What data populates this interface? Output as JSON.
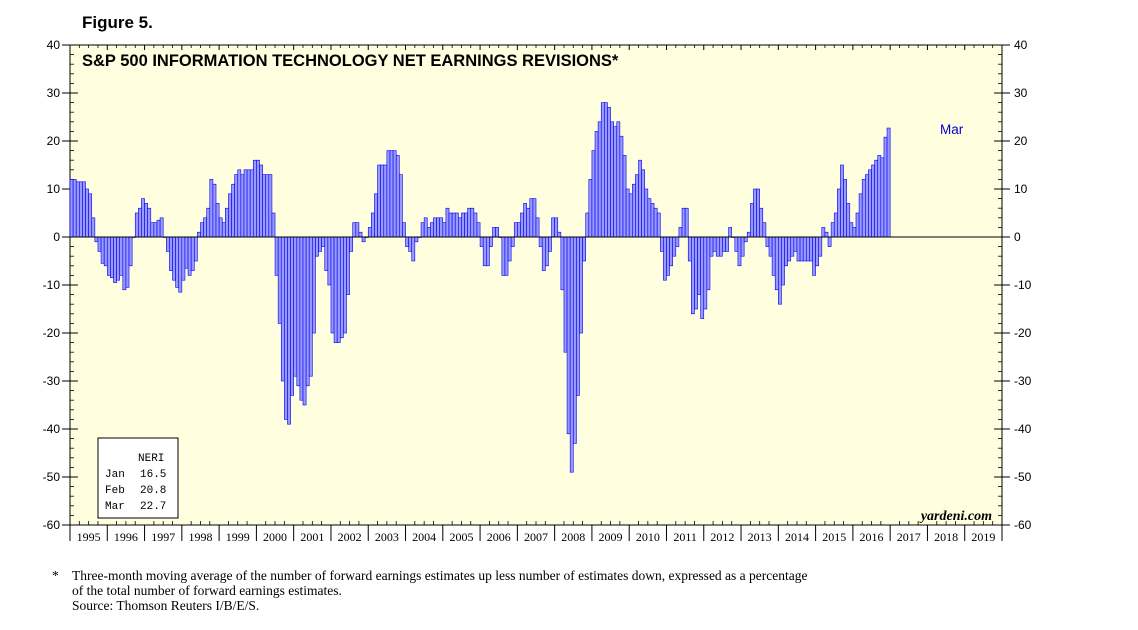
{
  "figure_label": "Figure 5.",
  "footnote": {
    "marker": "*",
    "line1": "Three-month moving average of the number of forward earnings estimates up less number of estimates down, expressed as a percentage",
    "line2": "of the total number of forward earnings estimates.",
    "source": "Source: Thomson Reuters I/B/E/S."
  },
  "colors": {
    "bars": "#0000ee",
    "bar_fill": "#9999ff",
    "plot_bg": "#ffffe0",
    "label": "#0000cc"
  },
  "chart_data": {
    "type": "bar",
    "title": "S&P 500 INFORMATION TECHNOLOGY NET EARNINGS REVISIONS*",
    "watermark": "yardeni.com",
    "ylim": [
      -60,
      40
    ],
    "xlim": [
      1995,
      2020
    ],
    "y_ticks": [
      40,
      30,
      20,
      10,
      0,
      -10,
      -20,
      -30,
      -40,
      -50,
      -60
    ],
    "x_tick_labels": [
      "1995",
      "1996",
      "1997",
      "1998",
      "1999",
      "2000",
      "2001",
      "2002",
      "2003",
      "2004",
      "2005",
      "2006",
      "2007",
      "2008",
      "2009",
      "2010",
      "2011",
      "2012",
      "2013",
      "2014",
      "2015",
      "2016",
      "2017",
      "2018",
      "2019"
    ],
    "grid": false,
    "last_point_label": "Mar",
    "legend": {
      "header": "NERI",
      "rows": [
        {
          "month": "Jan",
          "value": "16.5"
        },
        {
          "month": "Feb",
          "value": "20.8"
        },
        {
          "month": "Mar",
          "value": "22.7"
        }
      ]
    },
    "series": [
      {
        "start": "1995-01",
        "frequency": "monthly",
        "values": [
          12,
          12,
          11.5,
          11.5,
          11.5,
          10,
          9,
          4,
          -1,
          -3,
          -5.5,
          -6,
          -8,
          -8.5,
          -9.5,
          -9,
          -8,
          -11,
          -10.5,
          -6,
          0,
          5,
          6,
          8,
          7,
          6,
          3,
          3,
          3.5,
          4,
          0,
          -3,
          -7,
          -9,
          -10.5,
          -11.5,
          -9,
          -6.5,
          -8,
          -7,
          -5,
          1,
          3,
          4,
          6,
          12,
          11,
          7,
          4,
          3,
          6,
          9,
          11,
          13,
          14,
          13,
          14,
          14,
          14,
          16,
          16,
          15,
          13,
          13,
          13,
          5,
          -8,
          -18,
          -30,
          -38,
          -39,
          -33,
          -29,
          -31,
          -34,
          -35,
          -31,
          -29,
          -20,
          -4,
          -3,
          -2,
          -7,
          -10,
          -20,
          -22,
          -22,
          -21,
          -20,
          -12,
          -3,
          3,
          3,
          1,
          -1,
          0,
          2,
          5,
          9,
          15,
          15,
          15,
          18,
          18,
          18,
          17,
          13,
          3,
          -2,
          -3,
          -5,
          -1,
          0,
          3,
          4,
          2,
          3,
          4,
          4,
          4,
          3,
          6,
          5,
          5,
          5,
          4,
          5,
          5,
          6,
          6,
          5,
          3,
          -2,
          -6,
          -6,
          -2,
          2,
          2,
          0,
          -8,
          -8,
          -5,
          -2,
          3,
          3,
          5,
          7,
          6,
          8,
          8,
          4,
          -2,
          -7,
          -6,
          -3,
          4,
          4,
          1,
          -11,
          -24,
          -41,
          -49,
          -43,
          -33,
          -20,
          -5,
          5,
          12,
          18,
          22,
          24,
          28,
          28,
          27,
          24,
          23,
          24,
          21,
          17,
          10,
          9,
          11,
          13,
          16,
          14,
          10,
          8,
          7,
          6,
          5,
          -3,
          -9,
          -8,
          -6,
          -4,
          -2,
          2,
          6,
          6,
          -5,
          -16,
          -15,
          -12,
          -17,
          -15,
          -11,
          -4,
          -3,
          -4,
          -4,
          -3,
          -3,
          2,
          0,
          -3,
          -6,
          -4,
          -1,
          1,
          7,
          10,
          10,
          6,
          3,
          -2,
          -4,
          -8,
          -11,
          -14,
          -10,
          -6,
          -5,
          -4,
          -3,
          -5,
          -5,
          -5,
          -5,
          -5,
          -8,
          -6,
          -4,
          2,
          1,
          -2,
          3,
          5,
          10,
          15,
          12,
          7,
          3,
          2,
          5,
          9,
          12,
          13,
          14,
          15,
          16,
          17,
          16.5,
          20.8,
          22.7
        ]
      }
    ]
  }
}
